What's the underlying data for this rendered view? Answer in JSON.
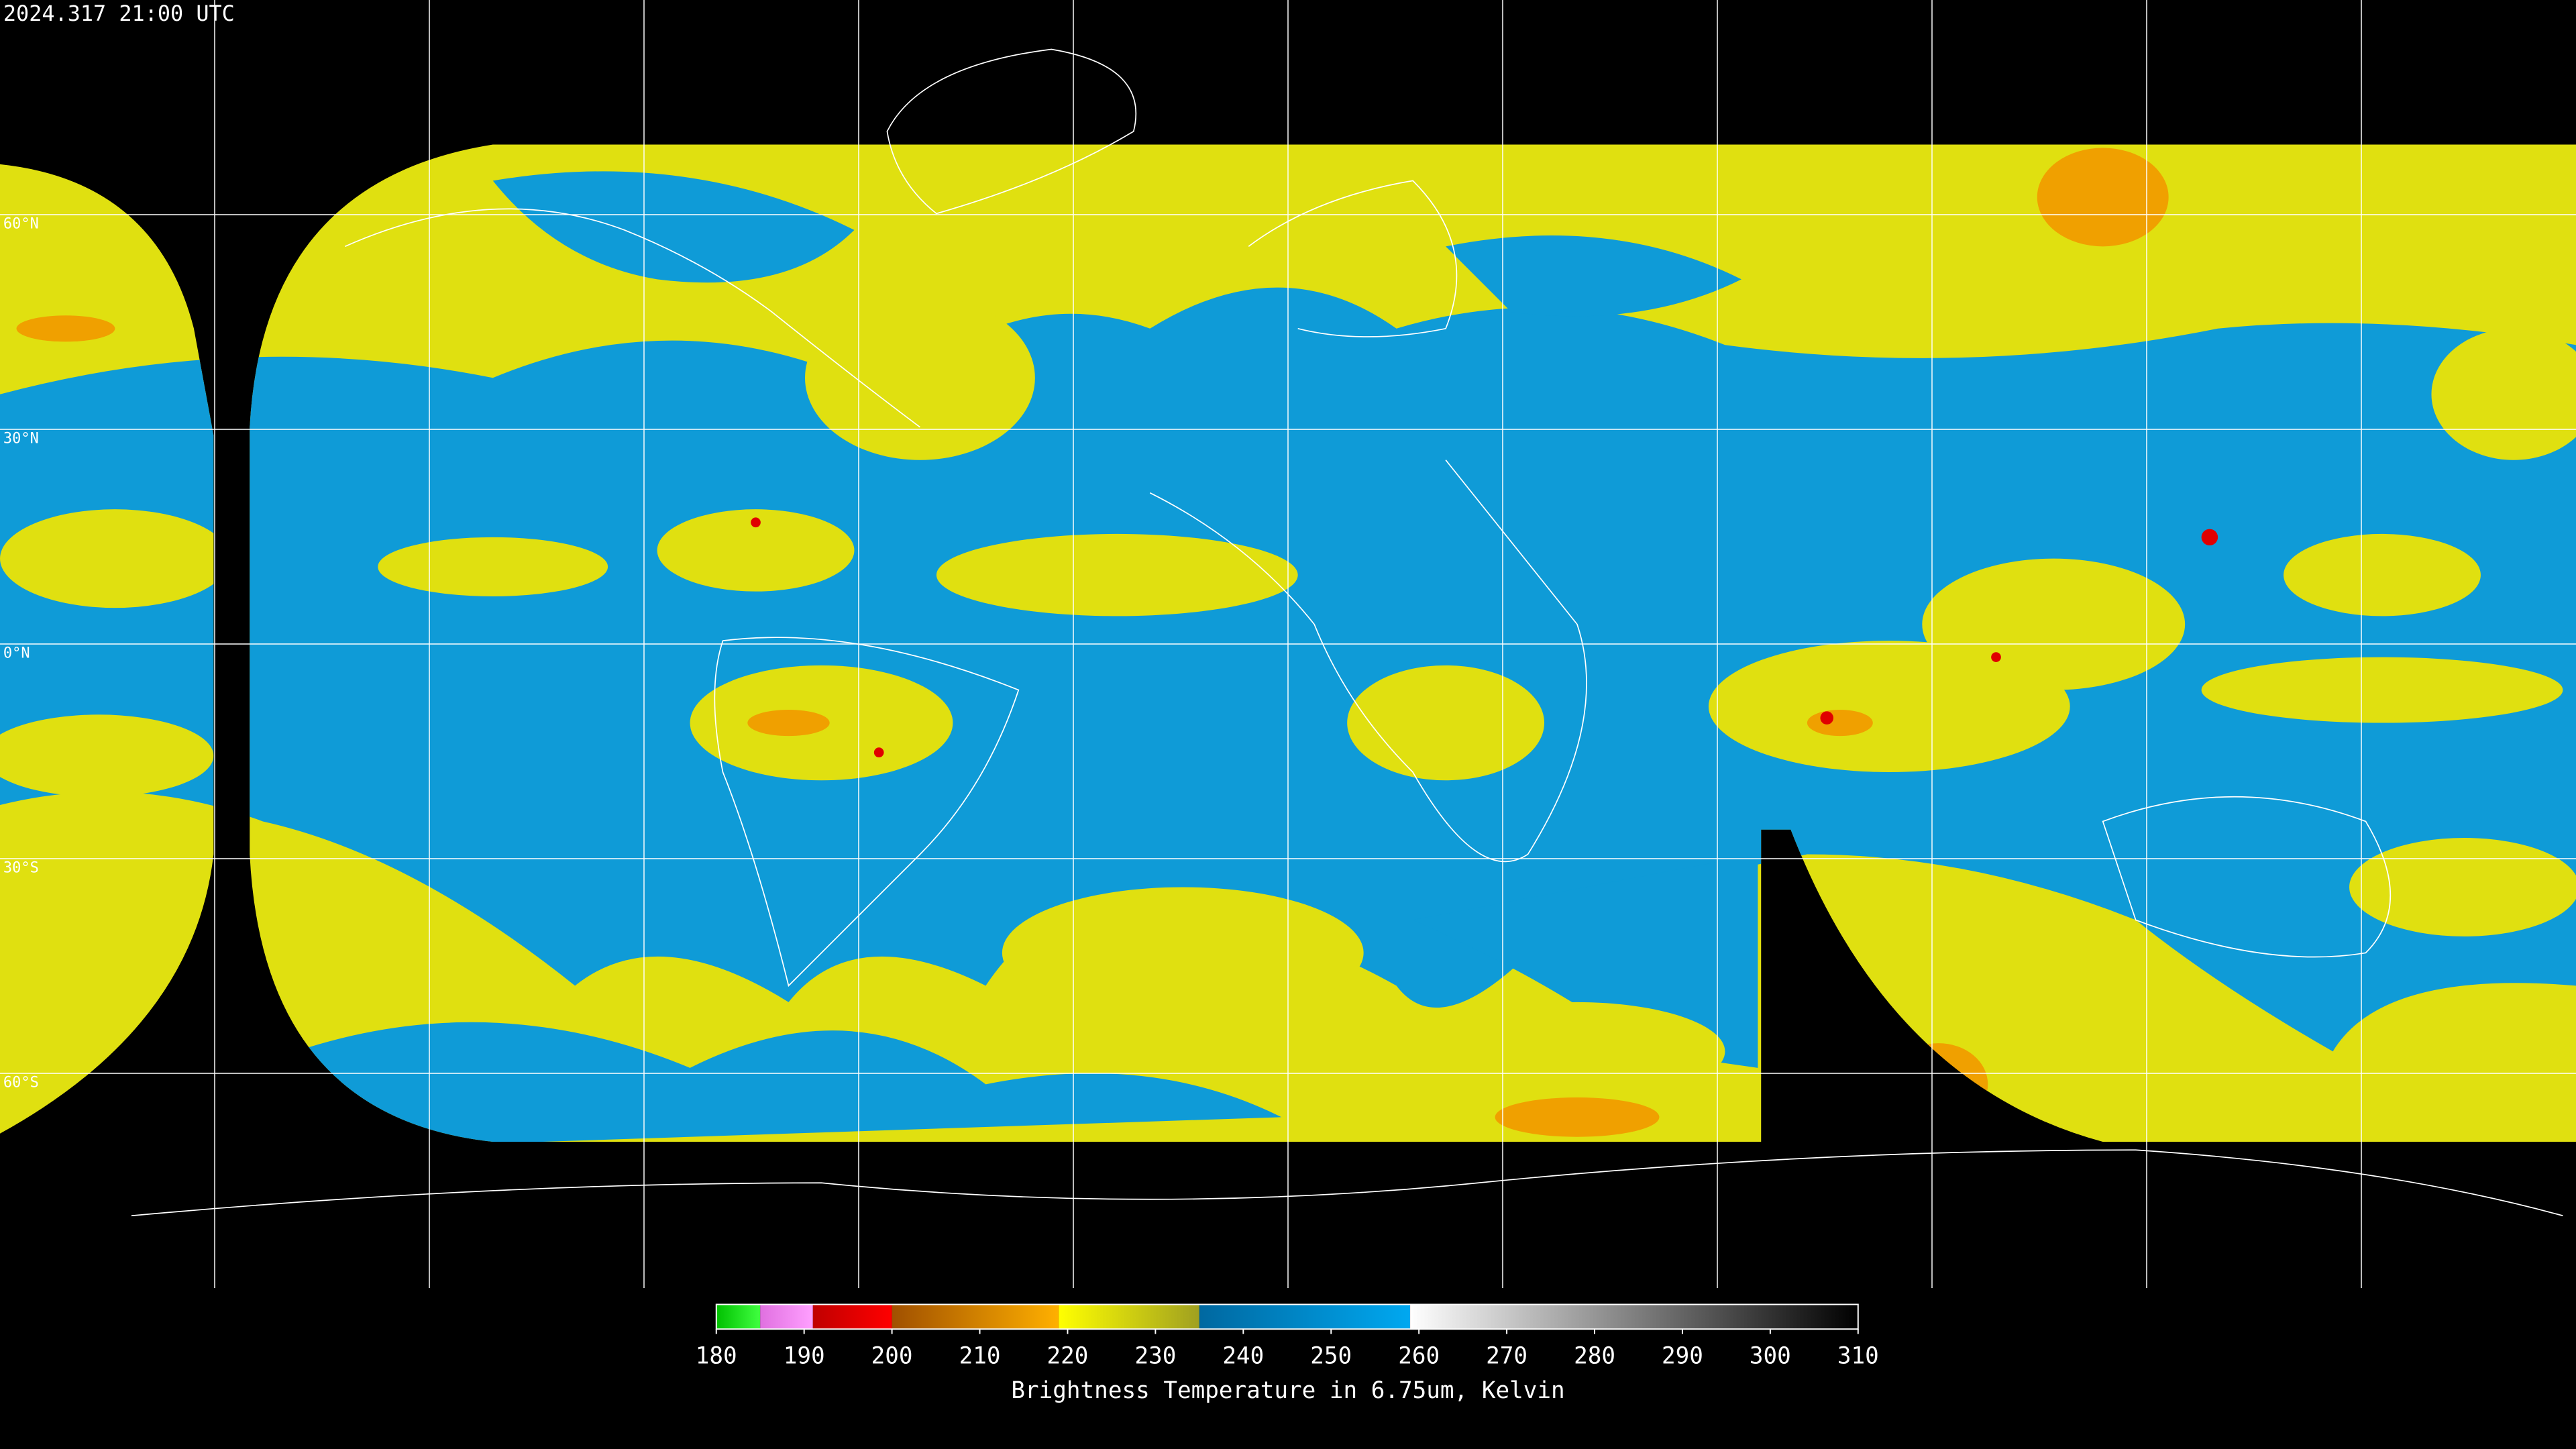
{
  "header": {
    "timestamp": "2024.317 21:00 UTC"
  },
  "map": {
    "latitude_labels": [
      {
        "value": 60,
        "label": "60°N"
      },
      {
        "value": 30,
        "label": "30°N"
      },
      {
        "value": 0,
        "label": "0°N"
      },
      {
        "value": -30,
        "label": "30°S"
      },
      {
        "value": -60,
        "label": "60°S"
      }
    ]
  },
  "colorbar": {
    "range": [
      180,
      310
    ],
    "ticks": [
      180,
      190,
      200,
      210,
      220,
      230,
      240,
      250,
      260,
      270,
      280,
      290,
      300,
      310
    ],
    "label": "Brightness Temperature in 6.75um, Kelvin",
    "segments": [
      {
        "from": 180,
        "to": 185,
        "color_start": "#00c000",
        "color_end": "#40ff40"
      },
      {
        "from": 185,
        "to": 191,
        "color_start": "#e070e0",
        "color_end": "#ffa0ff"
      },
      {
        "from": 191,
        "to": 200,
        "color_start": "#c00000",
        "color_end": "#ff0000"
      },
      {
        "from": 200,
        "to": 219,
        "color_start": "#a05000",
        "color_end": "#ffb000"
      },
      {
        "from": 219,
        "to": 235,
        "color_start": "#ffff00",
        "color_end": "#a0a020"
      },
      {
        "from": 235,
        "to": 259,
        "color_start": "#0068a0",
        "color_end": "#00a8f0"
      },
      {
        "from": 259,
        "to": 310,
        "color_start": "#ffffff",
        "color_end": "#000000"
      }
    ]
  }
}
